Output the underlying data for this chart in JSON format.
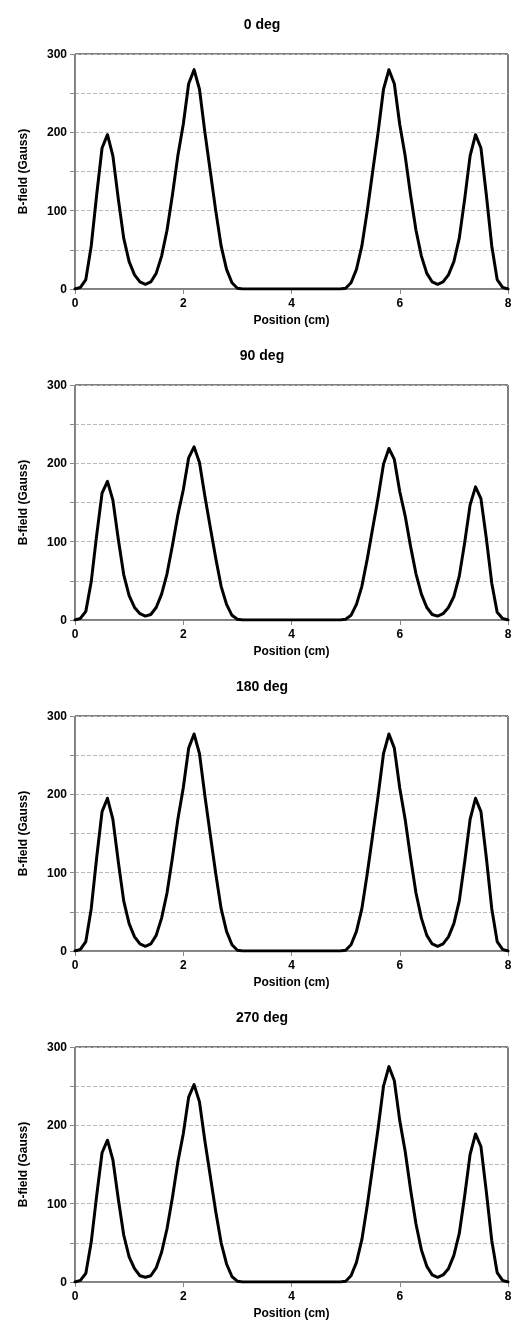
{
  "chart_data": [
    {
      "type": "line",
      "title": "0 deg",
      "xlabel": "Position (cm)",
      "ylabel": "B-field (Gauss)",
      "xlim": [
        0,
        8
      ],
      "xticks": [
        0,
        2,
        4,
        6,
        8
      ],
      "ylim": [
        0,
        300
      ],
      "yticks": [
        0,
        {
          "value": 50,
          "label": null
        },
        100,
        {
          "value": 150,
          "label": null
        },
        200,
        {
          "value": 250,
          "label": null
        },
        300
      ],
      "grid": "y",
      "marker": "none",
      "line_style": "solid",
      "x": [
        0,
        0.1,
        0.2,
        0.3,
        0.4,
        0.5,
        0.6,
        0.7,
        0.8,
        0.9,
        1,
        1.1,
        1.2,
        1.3,
        1.4,
        1.5,
        1.6,
        1.7,
        1.8,
        1.9,
        2,
        2.1,
        2.2,
        2.3,
        2.4,
        2.5,
        2.6,
        2.7,
        2.8,
        2.9,
        3,
        3.1,
        4,
        4.9,
        5,
        5.1,
        5.2,
        5.3,
        5.4,
        5.5,
        5.6,
        5.7,
        5.8,
        5.9,
        6,
        6.1,
        6.2,
        6.3,
        6.4,
        6.5,
        6.6,
        6.7,
        6.8,
        6.9,
        7,
        7.1,
        7.2,
        7.3,
        7.4,
        7.5,
        7.6,
        7.7,
        7.8,
        7.9,
        8
      ],
      "series": [
        {
          "color": "#000000",
          "values": [
            0,
            2,
            12,
            55,
            120,
            180,
            197,
            170,
            115,
            65,
            35,
            18,
            9,
            6,
            9,
            20,
            42,
            75,
            120,
            170,
            210,
            262,
            280,
            255,
            200,
            150,
            100,
            55,
            25,
            8,
            1,
            0,
            0,
            0,
            1,
            8,
            25,
            55,
            100,
            150,
            200,
            255,
            280,
            262,
            210,
            170,
            120,
            75,
            42,
            20,
            9,
            6,
            9,
            18,
            35,
            65,
            115,
            170,
            197,
            180,
            120,
            55,
            12,
            2,
            0
          ]
        }
      ]
    },
    {
      "type": "line",
      "title": "90 deg",
      "xlabel": "Position (cm)",
      "ylabel": "B-field (Gauss)",
      "xlim": [
        0,
        8
      ],
      "xticks": [
        0,
        2,
        4,
        6,
        8
      ],
      "ylim": [
        0,
        300
      ],
      "yticks": [
        0,
        {
          "value": 50,
          "label": null
        },
        100,
        {
          "value": 150,
          "label": null
        },
        200,
        {
          "value": 250,
          "label": null
        },
        300
      ],
      "grid": "y",
      "marker": "none",
      "line_style": "solid",
      "x": [
        0,
        0.1,
        0.2,
        0.3,
        0.4,
        0.5,
        0.6,
        0.7,
        0.8,
        0.9,
        1,
        1.1,
        1.2,
        1.3,
        1.4,
        1.5,
        1.6,
        1.7,
        1.8,
        1.9,
        2,
        2.1,
        2.2,
        2.3,
        2.4,
        2.5,
        2.6,
        2.7,
        2.8,
        2.9,
        3,
        3.1,
        4,
        4.9,
        5,
        5.1,
        5.2,
        5.3,
        5.4,
        5.5,
        5.6,
        5.7,
        5.8,
        5.9,
        6,
        6.1,
        6.2,
        6.3,
        6.4,
        6.5,
        6.6,
        6.7,
        6.8,
        6.9,
        7,
        7.1,
        7.2,
        7.3,
        7.4,
        7.5,
        7.6,
        7.7,
        7.8,
        7.9,
        8
      ],
      "series": [
        {
          "color": "#000000",
          "values": [
            0,
            2,
            11,
            49,
            108,
            162,
            177,
            153,
            103,
            58,
            31,
            16,
            8,
            5,
            7,
            16,
            33,
            59,
            95,
            134,
            166,
            207,
            221,
            201,
            158,
            118,
            79,
            43,
            20,
            6,
            1,
            0,
            0,
            0,
            1,
            6,
            20,
            43,
            78,
            117,
            156,
            199,
            219,
            205,
            164,
            133,
            94,
            59,
            33,
            16,
            7,
            5,
            8,
            16,
            30,
            56,
            99,
            147,
            170,
            155,
            104,
            47,
            10,
            2,
            0
          ]
        }
      ]
    },
    {
      "type": "line",
      "title": "180 deg",
      "xlabel": "Position (cm)",
      "ylabel": "B-field (Gauss)",
      "xlim": [
        0,
        8
      ],
      "xticks": [
        0,
        2,
        4,
        6,
        8
      ],
      "ylim": [
        0,
        300
      ],
      "yticks": [
        0,
        {
          "value": 50,
          "label": null
        },
        100,
        {
          "value": 150,
          "label": null
        },
        200,
        {
          "value": 250,
          "label": null
        },
        300
      ],
      "grid": "y",
      "marker": "none",
      "line_style": "solid",
      "x": [
        0,
        0.1,
        0.2,
        0.3,
        0.4,
        0.5,
        0.6,
        0.7,
        0.8,
        0.9,
        1,
        1.1,
        1.2,
        1.3,
        1.4,
        1.5,
        1.6,
        1.7,
        1.8,
        1.9,
        2,
        2.1,
        2.2,
        2.3,
        2.4,
        2.5,
        2.6,
        2.7,
        2.8,
        2.9,
        3,
        3.1,
        4,
        4.9,
        5,
        5.1,
        5.2,
        5.3,
        5.4,
        5.5,
        5.6,
        5.7,
        5.8,
        5.9,
        6,
        6.1,
        6.2,
        6.3,
        6.4,
        6.5,
        6.6,
        6.7,
        6.8,
        6.9,
        7,
        7.1,
        7.2,
        7.3,
        7.4,
        7.5,
        7.6,
        7.7,
        7.8,
        7.9,
        8
      ],
      "series": [
        {
          "color": "#000000",
          "values": [
            0,
            2,
            12,
            54,
            119,
            178,
            195,
            168,
            114,
            64,
            35,
            18,
            9,
            6,
            9,
            20,
            42,
            74,
            119,
            168,
            208,
            259,
            277,
            252,
            198,
            148,
            99,
            54,
            25,
            8,
            1,
            0,
            0,
            0,
            1,
            8,
            25,
            54,
            99,
            148,
            198,
            252,
            277,
            259,
            208,
            168,
            119,
            74,
            42,
            20,
            9,
            6,
            9,
            18,
            35,
            64,
            114,
            168,
            195,
            178,
            119,
            54,
            12,
            2,
            0
          ]
        }
      ]
    },
    {
      "type": "line",
      "title": "270 deg",
      "xlabel": "Position (cm)",
      "ylabel": "B-field (Gauss)",
      "xlim": [
        0,
        8
      ],
      "xticks": [
        0,
        2,
        4,
        6,
        8
      ],
      "ylim": [
        0,
        300
      ],
      "yticks": [
        0,
        {
          "value": 50,
          "label": null
        },
        100,
        {
          "value": 150,
          "label": null
        },
        200,
        {
          "value": 250,
          "label": null
        },
        300
      ],
      "grid": "y",
      "marker": "none",
      "line_style": "solid",
      "x": [
        0,
        0.1,
        0.2,
        0.3,
        0.4,
        0.5,
        0.6,
        0.7,
        0.8,
        0.9,
        1,
        1.1,
        1.2,
        1.3,
        1.4,
        1.5,
        1.6,
        1.7,
        1.8,
        1.9,
        2,
        2.1,
        2.2,
        2.3,
        2.4,
        2.5,
        2.6,
        2.7,
        2.8,
        2.9,
        3,
        3.1,
        4,
        4.9,
        5,
        5.1,
        5.2,
        5.3,
        5.4,
        5.5,
        5.6,
        5.7,
        5.8,
        5.9,
        6,
        6.1,
        6.2,
        6.3,
        6.4,
        6.5,
        6.6,
        6.7,
        6.8,
        6.9,
        7,
        7.1,
        7.2,
        7.3,
        7.4,
        7.5,
        7.6,
        7.7,
        7.8,
        7.9,
        8
      ],
      "series": [
        {
          "color": "#000000",
          "values": [
            0,
            2,
            11,
            51,
            110,
            165,
            181,
            156,
            106,
            60,
            32,
            17,
            8,
            6,
            8,
            18,
            38,
            68,
            108,
            153,
            189,
            236,
            252,
            230,
            180,
            135,
            90,
            50,
            23,
            7,
            1,
            0,
            0,
            0,
            1,
            8,
            25,
            54,
            98,
            147,
            196,
            250,
            275,
            257,
            206,
            167,
            118,
            74,
            41,
            20,
            9,
            6,
            9,
            17,
            34,
            62,
            110,
            163,
            189,
            173,
            115,
            53,
            12,
            2,
            0
          ]
        }
      ]
    }
  ]
}
